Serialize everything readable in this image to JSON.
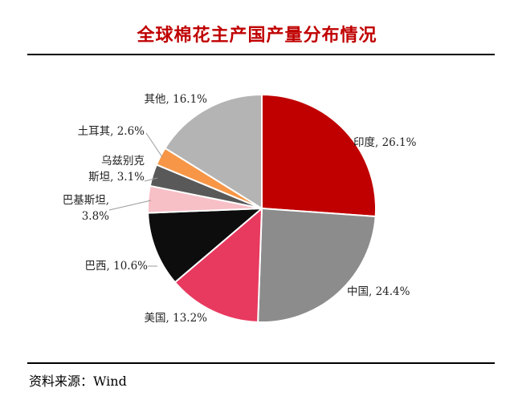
{
  "page": {
    "title": "全球棉花主产国产量分布情况",
    "source": "资料来源：Wind"
  },
  "chart_data": {
    "type": "pie",
    "title": "全球棉花主产国产量分布情况",
    "unit": "%",
    "slices": [
      {
        "label": "印度",
        "value": 26.1,
        "display": "印度, 26.1%",
        "color": "#c00000"
      },
      {
        "label": "中国",
        "value": 24.4,
        "display": "中国, 24.4%",
        "color": "#8c8c8c"
      },
      {
        "label": "美国",
        "value": 13.2,
        "display": "美国, 13.2%",
        "color": "#e8395f"
      },
      {
        "label": "巴西",
        "value": 10.6,
        "display": "巴西, 10.6%",
        "color": "#0d0d0d"
      },
      {
        "label": "巴基斯坦",
        "value": 3.8,
        "display": "巴基斯坦,\n3.8%",
        "color": "#f7bfc6"
      },
      {
        "label": "乌兹别克斯坦",
        "value": 3.1,
        "display": "乌兹别克\n斯坦, 3.1%",
        "color": "#595959"
      },
      {
        "label": "土耳其",
        "value": 2.6,
        "display": "土耳其, 2.6%",
        "color": "#f79646"
      },
      {
        "label": "其他",
        "value": 16.1,
        "display": "其他, 16.1%",
        "color": "#b4b4b4"
      }
    ],
    "legend": "none"
  }
}
